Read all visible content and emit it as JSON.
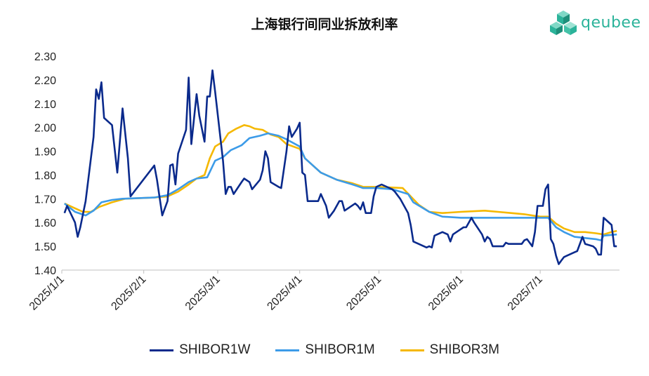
{
  "chart_data": {
    "type": "line",
    "title": "上海银行间同业拆放利率",
    "xlabel": "",
    "ylabel": "",
    "ylim": [
      1.4,
      2.3
    ],
    "yticks": [
      "1.40",
      "1.50",
      "1.60",
      "1.70",
      "1.80",
      "1.90",
      "2.00",
      "2.10",
      "2.20",
      "2.30"
    ],
    "xlim": [
      "2025-01-01",
      "2025-07-31"
    ],
    "xticks": [
      {
        "date": "2025-01-01",
        "label": "2025/1/1"
      },
      {
        "date": "2025-02-01",
        "label": "2025/2/1"
      },
      {
        "date": "2025-03-01",
        "label": "2025/3/1"
      },
      {
        "date": "2025-04-01",
        "label": "2025/4/1"
      },
      {
        "date": "2025-05-01",
        "label": "2025/5/1"
      },
      {
        "date": "2025-06-01",
        "label": "2025/6/1"
      },
      {
        "date": "2025-07-01",
        "label": "2025/7/1"
      }
    ],
    "grid": false,
    "legend_position": "bottom",
    "series": [
      {
        "name": "SHIBOR1W",
        "color": "#0a2a8c",
        "points": [
          [
            "2025-01-02",
            1.64
          ],
          [
            "2025-01-03",
            1.67
          ],
          [
            "2025-01-06",
            1.6
          ],
          [
            "2025-01-07",
            1.54
          ],
          [
            "2025-01-08",
            1.58
          ],
          [
            "2025-01-10",
            1.69
          ],
          [
            "2025-01-13",
            1.96
          ],
          [
            "2025-01-14",
            2.16
          ],
          [
            "2025-01-15",
            2.12
          ],
          [
            "2025-01-16",
            2.19
          ],
          [
            "2025-01-17",
            2.04
          ],
          [
            "2025-01-20",
            2.01
          ],
          [
            "2025-01-22",
            1.81
          ],
          [
            "2025-01-24",
            2.08
          ],
          [
            "2025-01-26",
            1.87
          ],
          [
            "2025-01-27",
            1.71
          ],
          [
            "2025-02-05",
            1.84
          ],
          [
            "2025-02-06",
            1.78
          ],
          [
            "2025-02-08",
            1.63
          ],
          [
            "2025-02-10",
            1.69
          ],
          [
            "2025-02-11",
            1.84
          ],
          [
            "2025-02-12",
            1.845
          ],
          [
            "2025-02-13",
            1.76
          ],
          [
            "2025-02-14",
            1.89
          ],
          [
            "2025-02-17",
            1.99
          ],
          [
            "2025-02-18",
            2.21
          ],
          [
            "2025-02-19",
            1.93
          ],
          [
            "2025-02-21",
            2.14
          ],
          [
            "2025-02-22",
            2.05
          ],
          [
            "2025-02-24",
            1.94
          ],
          [
            "2025-02-25",
            2.13
          ],
          [
            "2025-02-26",
            2.13
          ],
          [
            "2025-02-27",
            2.24
          ],
          [
            "2025-02-28",
            2.15
          ],
          [
            "2025-03-03",
            1.86
          ],
          [
            "2025-03-04",
            1.72
          ],
          [
            "2025-03-05",
            1.75
          ],
          [
            "2025-03-06",
            1.75
          ],
          [
            "2025-03-07",
            1.72
          ],
          [
            "2025-03-10",
            1.77
          ],
          [
            "2025-03-11",
            1.785
          ],
          [
            "2025-03-13",
            1.77
          ],
          [
            "2025-03-14",
            1.74
          ],
          [
            "2025-03-17",
            1.78
          ],
          [
            "2025-03-18",
            1.82
          ],
          [
            "2025-03-19",
            1.9
          ],
          [
            "2025-03-20",
            1.87
          ],
          [
            "2025-03-21",
            1.77
          ],
          [
            "2025-03-24",
            1.75
          ],
          [
            "2025-03-25",
            1.745
          ],
          [
            "2025-03-27",
            1.9
          ],
          [
            "2025-03-28",
            2.005
          ],
          [
            "2025-03-29",
            1.96
          ],
          [
            "2025-03-31",
            1.995
          ],
          [
            "2025-04-01",
            2.02
          ],
          [
            "2025-04-02",
            1.81
          ],
          [
            "2025-04-03",
            1.8
          ],
          [
            "2025-04-04",
            1.69
          ],
          [
            "2025-04-08",
            1.69
          ],
          [
            "2025-04-09",
            1.72
          ],
          [
            "2025-04-11",
            1.67
          ],
          [
            "2025-04-12",
            1.62
          ],
          [
            "2025-04-14",
            1.65
          ],
          [
            "2025-04-16",
            1.69
          ],
          [
            "2025-04-17",
            1.69
          ],
          [
            "2025-04-18",
            1.65
          ],
          [
            "2025-04-22",
            1.68
          ],
          [
            "2025-04-23",
            1.67
          ],
          [
            "2025-04-24",
            1.655
          ],
          [
            "2025-04-25",
            1.685
          ],
          [
            "2025-04-26",
            1.64
          ],
          [
            "2025-04-28",
            1.64
          ],
          [
            "2025-04-29",
            1.71
          ],
          [
            "2025-04-30",
            1.75
          ],
          [
            "2025-05-02",
            1.76
          ],
          [
            "2025-05-06",
            1.74
          ],
          [
            "2025-05-07",
            1.73
          ],
          [
            "2025-05-09",
            1.7
          ],
          [
            "2025-05-12",
            1.64
          ],
          [
            "2025-05-13",
            1.59
          ],
          [
            "2025-05-14",
            1.52
          ],
          [
            "2025-05-16",
            1.51
          ],
          [
            "2025-05-19",
            1.495
          ],
          [
            "2025-05-20",
            1.5
          ],
          [
            "2025-05-21",
            1.495
          ],
          [
            "2025-05-22",
            1.545
          ],
          [
            "2025-05-25",
            1.56
          ],
          [
            "2025-05-27",
            1.55
          ],
          [
            "2025-05-28",
            1.52
          ],
          [
            "2025-05-29",
            1.55
          ],
          [
            "2025-05-31",
            1.565
          ],
          [
            "2025-06-02",
            1.58
          ],
          [
            "2025-06-03",
            1.58
          ],
          [
            "2025-06-04",
            1.6
          ],
          [
            "2025-06-05",
            1.62
          ],
          [
            "2025-06-06",
            1.6
          ],
          [
            "2025-06-09",
            1.55
          ],
          [
            "2025-06-10",
            1.52
          ],
          [
            "2025-06-11",
            1.54
          ],
          [
            "2025-06-12",
            1.53
          ],
          [
            "2025-06-13",
            1.5
          ],
          [
            "2025-06-16",
            1.5
          ],
          [
            "2025-06-17",
            1.5
          ],
          [
            "2025-06-18",
            1.515
          ],
          [
            "2025-06-19",
            1.51
          ],
          [
            "2025-06-20",
            1.51
          ],
          [
            "2025-06-23",
            1.51
          ],
          [
            "2025-06-24",
            1.51
          ],
          [
            "2025-06-25",
            1.525
          ],
          [
            "2025-06-26",
            1.53
          ],
          [
            "2025-06-27",
            1.515
          ],
          [
            "2025-06-28",
            1.5
          ],
          [
            "2025-06-29",
            1.56
          ],
          [
            "2025-06-30",
            1.67
          ],
          [
            "2025-07-01",
            1.67
          ],
          [
            "2025-07-02",
            1.67
          ],
          [
            "2025-07-03",
            1.74
          ],
          [
            "2025-07-04",
            1.76
          ],
          [
            "2025-07-05",
            1.53
          ],
          [
            "2025-07-06",
            1.51
          ],
          [
            "2025-07-07",
            1.46
          ],
          [
            "2025-07-08",
            1.425
          ],
          [
            "2025-07-09",
            1.44
          ],
          [
            "2025-07-10",
            1.455
          ],
          [
            "2025-07-11",
            1.46
          ],
          [
            "2025-07-14",
            1.475
          ],
          [
            "2025-07-15",
            1.48
          ],
          [
            "2025-07-16",
            1.51
          ],
          [
            "2025-07-17",
            1.54
          ],
          [
            "2025-07-18",
            1.51
          ],
          [
            "2025-07-21",
            1.5
          ],
          [
            "2025-07-22",
            1.49
          ],
          [
            "2025-07-23",
            1.465
          ],
          [
            "2025-07-24",
            1.465
          ],
          [
            "2025-07-25",
            1.62
          ],
          [
            "2025-07-28",
            1.59
          ],
          [
            "2025-07-29",
            1.5
          ],
          [
            "2025-07-30",
            1.5
          ]
        ]
      },
      {
        "name": "SHIBOR1M",
        "color": "#3c9be8",
        "points": [
          [
            "2025-01-02",
            1.68
          ],
          [
            "2025-01-06",
            1.645
          ],
          [
            "2025-01-10",
            1.63
          ],
          [
            "2025-01-13",
            1.65
          ],
          [
            "2025-01-16",
            1.685
          ],
          [
            "2025-01-20",
            1.695
          ],
          [
            "2025-01-24",
            1.7
          ],
          [
            "2025-02-05",
            1.705
          ],
          [
            "2025-02-10",
            1.715
          ],
          [
            "2025-02-14",
            1.74
          ],
          [
            "2025-02-18",
            1.77
          ],
          [
            "2025-02-21",
            1.785
          ],
          [
            "2025-02-25",
            1.79
          ],
          [
            "2025-02-28",
            1.86
          ],
          [
            "2025-03-03",
            1.875
          ],
          [
            "2025-03-06",
            1.905
          ],
          [
            "2025-03-10",
            1.925
          ],
          [
            "2025-03-13",
            1.955
          ],
          [
            "2025-03-17",
            1.965
          ],
          [
            "2025-03-20",
            1.975
          ],
          [
            "2025-03-24",
            1.965
          ],
          [
            "2025-03-27",
            1.95
          ],
          [
            "2025-04-01",
            1.92
          ],
          [
            "2025-04-03",
            1.87
          ],
          [
            "2025-04-09",
            1.81
          ],
          [
            "2025-04-15",
            1.78
          ],
          [
            "2025-04-21",
            1.76
          ],
          [
            "2025-04-25",
            1.745
          ],
          [
            "2025-04-30",
            1.745
          ],
          [
            "2025-05-06",
            1.74
          ],
          [
            "2025-05-12",
            1.72
          ],
          [
            "2025-05-14",
            1.685
          ],
          [
            "2025-05-20",
            1.645
          ],
          [
            "2025-05-25",
            1.625
          ],
          [
            "2025-06-01",
            1.62
          ],
          [
            "2025-06-10",
            1.62
          ],
          [
            "2025-06-20",
            1.62
          ],
          [
            "2025-07-01",
            1.62
          ],
          [
            "2025-07-04",
            1.62
          ],
          [
            "2025-07-07",
            1.58
          ],
          [
            "2025-07-10",
            1.56
          ],
          [
            "2025-07-14",
            1.54
          ],
          [
            "2025-07-18",
            1.535
          ],
          [
            "2025-07-22",
            1.53
          ],
          [
            "2025-07-24",
            1.525
          ],
          [
            "2025-07-25",
            1.545
          ],
          [
            "2025-07-30",
            1.55
          ]
        ]
      },
      {
        "name": "SHIBOR3M",
        "color": "#f5b800",
        "points": [
          [
            "2025-01-02",
            1.68
          ],
          [
            "2025-01-06",
            1.66
          ],
          [
            "2025-01-09",
            1.645
          ],
          [
            "2025-01-12",
            1.645
          ],
          [
            "2025-01-15",
            1.665
          ],
          [
            "2025-01-20",
            1.685
          ],
          [
            "2025-01-25",
            1.7
          ],
          [
            "2025-02-05",
            1.705
          ],
          [
            "2025-02-10",
            1.71
          ],
          [
            "2025-02-14",
            1.73
          ],
          [
            "2025-02-18",
            1.76
          ],
          [
            "2025-02-21",
            1.785
          ],
          [
            "2025-02-24",
            1.8
          ],
          [
            "2025-02-26",
            1.87
          ],
          [
            "2025-02-28",
            1.92
          ],
          [
            "2025-03-03",
            1.94
          ],
          [
            "2025-03-05",
            1.975
          ],
          [
            "2025-03-08",
            1.995
          ],
          [
            "2025-03-11",
            2.01
          ],
          [
            "2025-03-13",
            2.005
          ],
          [
            "2025-03-15",
            1.995
          ],
          [
            "2025-03-18",
            1.99
          ],
          [
            "2025-03-21",
            1.97
          ],
          [
            "2025-03-24",
            1.96
          ],
          [
            "2025-03-27",
            1.93
          ],
          [
            "2025-04-01",
            1.91
          ],
          [
            "2025-04-03",
            1.87
          ],
          [
            "2025-04-09",
            1.81
          ],
          [
            "2025-04-15",
            1.78
          ],
          [
            "2025-04-21",
            1.765
          ],
          [
            "2025-04-25",
            1.75
          ],
          [
            "2025-05-01",
            1.75
          ],
          [
            "2025-05-10",
            1.745
          ],
          [
            "2025-05-13",
            1.71
          ],
          [
            "2025-05-16",
            1.675
          ],
          [
            "2025-05-20",
            1.645
          ],
          [
            "2025-05-25",
            1.64
          ],
          [
            "2025-06-01",
            1.645
          ],
          [
            "2025-06-10",
            1.65
          ],
          [
            "2025-06-15",
            1.645
          ],
          [
            "2025-06-20",
            1.64
          ],
          [
            "2025-06-25",
            1.635
          ],
          [
            "2025-07-01",
            1.625
          ],
          [
            "2025-07-04",
            1.625
          ],
          [
            "2025-07-07",
            1.595
          ],
          [
            "2025-07-10",
            1.575
          ],
          [
            "2025-07-14",
            1.56
          ],
          [
            "2025-07-18",
            1.56
          ],
          [
            "2025-07-22",
            1.555
          ],
          [
            "2025-07-25",
            1.55
          ],
          [
            "2025-07-28",
            1.56
          ],
          [
            "2025-07-30",
            1.565
          ]
        ]
      }
    ]
  },
  "logo": {
    "text": "qeubee",
    "color": "#2bb39a"
  }
}
